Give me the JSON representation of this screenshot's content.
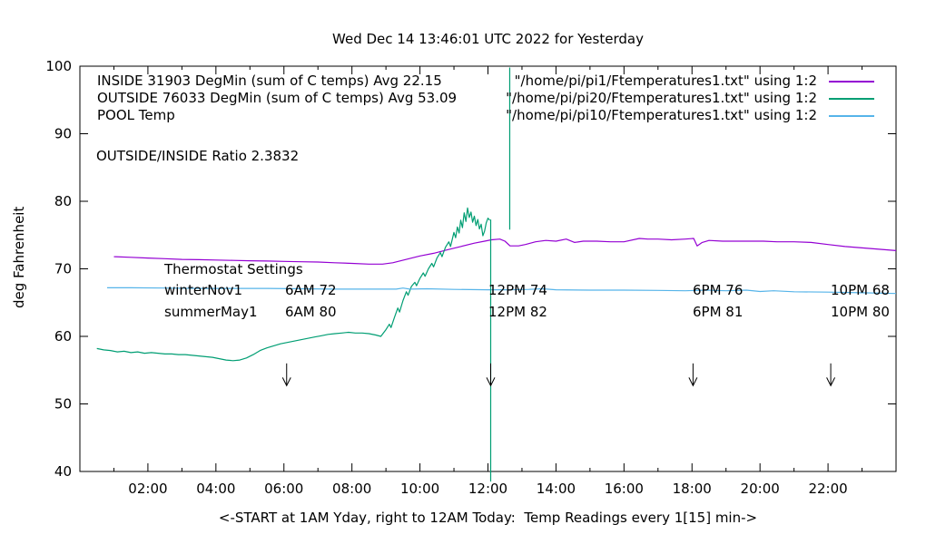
{
  "title": "Wed Dec 14 13:46:01 UTC 2022 for Yesterday",
  "ratio_label": "OUTSIDE/INSIDE Ratio 2.3832",
  "legend": {
    "entries": [
      {
        "label": "INSIDE 31903 DegMin (sum of C temps) Avg 22.15",
        "file": "\"/home/pi/pi1/Ftemperatures1.txt\" using 1:2",
        "color": "#9400d3"
      },
      {
        "label": "OUTSIDE 76033 DegMin (sum of C temps) Avg 53.09",
        "file": "\"/home/pi/pi20/Ftemperatures1.txt\" using 1:2",
        "color": "#009e73"
      },
      {
        "label": "POOL Temp",
        "file": "\"/home/pi/pi10/Ftemperatures1.txt\" using 1:2",
        "color": "#56b4e9"
      }
    ]
  },
  "thermostat": {
    "heading": "Thermostat Settings",
    "rows": [
      {
        "season": "winterNov1",
        "c1": "6AM 72",
        "c2": "12PM 74",
        "c3": "6PM 76",
        "c4": "10PM 68"
      },
      {
        "season": "summerMay1",
        "c1": "6AM 80",
        "c2": "12PM 82",
        "c3": "6PM 81",
        "c4": "10PM 80"
      }
    ]
  },
  "chart_data": {
    "type": "line",
    "title": "Wed Dec 14 13:46:01 UTC 2022 for Yesterday",
    "xlabel": "<-START at 1AM Yday, right to 12AM Today:  Temp Readings every 1[15] min->",
    "ylabel": "deg Fahrenheit",
    "xlim": [
      0,
      24
    ],
    "ylim": [
      40,
      100
    ],
    "grid": false,
    "legend_position": "top",
    "x_major_ticks": [
      {
        "v": 2,
        "label": "02:00"
      },
      {
        "v": 4,
        "label": "04:00"
      },
      {
        "v": 6,
        "label": "06:00"
      },
      {
        "v": 8,
        "label": "08:00"
      },
      {
        "v": 10,
        "label": "10:00"
      },
      {
        "v": 12,
        "label": "12:00"
      },
      {
        "v": 14,
        "label": "14:00"
      },
      {
        "v": 16,
        "label": "16:00"
      },
      {
        "v": 18,
        "label": "18:00"
      },
      {
        "v": 20,
        "label": "20:00"
      },
      {
        "v": 22,
        "label": "22:00"
      }
    ],
    "x_minor_ticks": [
      1,
      3,
      5,
      7,
      9,
      11,
      13,
      15,
      17,
      19,
      21,
      23
    ],
    "y_ticks": [
      {
        "v": 40,
        "label": "40"
      },
      {
        "v": 50,
        "label": "50"
      },
      {
        "v": 60,
        "label": "60"
      },
      {
        "v": 70,
        "label": "70"
      },
      {
        "v": 80,
        "label": "80"
      },
      {
        "v": 90,
        "label": "90"
      },
      {
        "v": 100,
        "label": "100"
      }
    ],
    "series": [
      {
        "name": "INSIDE temp (deg F)",
        "color": "#9400d3",
        "points": [
          [
            1,
            71.8
          ],
          [
            1.5,
            71.7
          ],
          [
            2,
            71.6
          ],
          [
            2.5,
            71.5
          ],
          [
            3,
            71.4
          ],
          [
            3.5,
            71.35
          ],
          [
            4,
            71.3
          ],
          [
            4.5,
            71.25
          ],
          [
            5,
            71.2
          ],
          [
            5.5,
            71.15
          ],
          [
            6,
            71.1
          ],
          [
            6.5,
            71.05
          ],
          [
            7,
            71.0
          ],
          [
            7.5,
            70.9
          ],
          [
            8,
            70.8
          ],
          [
            8.5,
            70.7
          ],
          [
            8.9,
            70.7
          ],
          [
            9.2,
            70.9
          ],
          [
            9.6,
            71.4
          ],
          [
            10,
            71.9
          ],
          [
            10.4,
            72.3
          ],
          [
            10.8,
            72.8
          ],
          [
            11.2,
            73.3
          ],
          [
            11.6,
            73.8
          ],
          [
            11.9,
            74.1
          ],
          [
            12.1,
            74.3
          ],
          [
            12.35,
            74.4
          ],
          [
            12.5,
            74.1
          ],
          [
            12.65,
            73.4
          ],
          [
            12.9,
            73.4
          ],
          [
            13.1,
            73.6
          ],
          [
            13.4,
            74.0
          ],
          [
            13.7,
            74.2
          ],
          [
            14,
            74.1
          ],
          [
            14.3,
            74.4
          ],
          [
            14.55,
            73.9
          ],
          [
            14.8,
            74.1
          ],
          [
            15.2,
            74.1
          ],
          [
            15.6,
            74.0
          ],
          [
            16,
            74.0
          ],
          [
            16.45,
            74.5
          ],
          [
            16.7,
            74.4
          ],
          [
            17,
            74.4
          ],
          [
            17.4,
            74.3
          ],
          [
            17.8,
            74.4
          ],
          [
            18.05,
            74.5
          ],
          [
            18.15,
            73.4
          ],
          [
            18.3,
            73.9
          ],
          [
            18.5,
            74.2
          ],
          [
            18.9,
            74.1
          ],
          [
            19.3,
            74.1
          ],
          [
            19.7,
            74.1
          ],
          [
            20.1,
            74.1
          ],
          [
            20.5,
            74.0
          ],
          [
            21,
            74.0
          ],
          [
            21.5,
            73.9
          ],
          [
            22,
            73.6
          ],
          [
            22.5,
            73.3
          ],
          [
            23,
            73.1
          ],
          [
            23.5,
            72.9
          ],
          [
            24,
            72.7
          ]
        ]
      },
      {
        "name": "OUTSIDE temp (deg F)",
        "color": "#009e73",
        "points": [
          [
            0.5,
            58.2
          ],
          [
            0.7,
            58.0
          ],
          [
            0.9,
            57.9
          ],
          [
            1.1,
            57.7
          ],
          [
            1.3,
            57.8
          ],
          [
            1.5,
            57.6
          ],
          [
            1.7,
            57.7
          ],
          [
            1.9,
            57.5
          ],
          [
            2.1,
            57.6
          ],
          [
            2.3,
            57.5
          ],
          [
            2.5,
            57.4
          ],
          [
            2.7,
            57.4
          ],
          [
            2.9,
            57.3
          ],
          [
            3.1,
            57.3
          ],
          [
            3.3,
            57.2
          ],
          [
            3.5,
            57.1
          ],
          [
            3.7,
            57.0
          ],
          [
            3.9,
            56.9
          ],
          [
            4.1,
            56.7
          ],
          [
            4.3,
            56.5
          ],
          [
            4.5,
            56.4
          ],
          [
            4.7,
            56.5
          ],
          [
            4.9,
            56.8
          ],
          [
            5.1,
            57.3
          ],
          [
            5.3,
            57.9
          ],
          [
            5.5,
            58.3
          ],
          [
            5.7,
            58.6
          ],
          [
            5.9,
            58.9
          ],
          [
            6.1,
            59.1
          ],
          [
            6.3,
            59.3
          ],
          [
            6.5,
            59.5
          ],
          [
            6.7,
            59.7
          ],
          [
            6.9,
            59.9
          ],
          [
            7.1,
            60.1
          ],
          [
            7.3,
            60.3
          ],
          [
            7.5,
            60.4
          ],
          [
            7.7,
            60.5
          ],
          [
            7.9,
            60.6
          ],
          [
            8.1,
            60.5
          ],
          [
            8.3,
            60.5
          ],
          [
            8.5,
            60.4
          ],
          [
            8.7,
            60.2
          ],
          [
            8.85,
            60.0
          ],
          [
            9.0,
            61.0
          ],
          [
            9.1,
            61.8
          ],
          [
            9.15,
            61.3
          ],
          [
            9.25,
            62.8
          ],
          [
            9.35,
            64.2
          ],
          [
            9.4,
            63.6
          ],
          [
            9.5,
            65.3
          ],
          [
            9.6,
            66.6
          ],
          [
            9.65,
            66.1
          ],
          [
            9.75,
            67.4
          ],
          [
            9.85,
            68.0
          ],
          [
            9.9,
            67.5
          ],
          [
            10.0,
            68.6
          ],
          [
            10.1,
            69.4
          ],
          [
            10.15,
            68.9
          ],
          [
            10.25,
            70.0
          ],
          [
            10.35,
            70.8
          ],
          [
            10.4,
            70.3
          ],
          [
            10.5,
            71.6
          ],
          [
            10.6,
            72.4
          ],
          [
            10.65,
            71.8
          ],
          [
            10.75,
            73.2
          ],
          [
            10.85,
            74.0
          ],
          [
            10.9,
            73.3
          ],
          [
            11.0,
            75.4
          ],
          [
            11.05,
            74.6
          ],
          [
            11.1,
            76.2
          ],
          [
            11.15,
            75.3
          ],
          [
            11.2,
            77.2
          ],
          [
            11.25,
            76.1
          ],
          [
            11.3,
            78.3
          ],
          [
            11.35,
            77.0
          ],
          [
            11.4,
            79.0
          ],
          [
            11.45,
            77.6
          ],
          [
            11.5,
            78.4
          ],
          [
            11.55,
            76.9
          ],
          [
            11.6,
            77.8
          ],
          [
            11.65,
            76.4
          ],
          [
            11.7,
            77.3
          ],
          [
            11.75,
            75.9
          ],
          [
            11.8,
            76.6
          ],
          [
            11.85,
            74.9
          ],
          [
            11.9,
            75.6
          ],
          [
            11.95,
            76.8
          ],
          [
            12.0,
            77.5
          ],
          [
            12.05,
            77.2
          ]
        ]
      },
      {
        "name": "POOL temp (deg F)",
        "color": "#56b4e9",
        "points": [
          [
            0.8,
            67.2
          ],
          [
            1.5,
            67.2
          ],
          [
            2.5,
            67.15
          ],
          [
            3.5,
            67.1
          ],
          [
            4.5,
            67.1
          ],
          [
            5.5,
            67.1
          ],
          [
            6.5,
            67.05
          ],
          [
            7.5,
            67.0
          ],
          [
            8.5,
            67.0
          ],
          [
            9.3,
            67.0
          ],
          [
            9.5,
            67.15
          ],
          [
            9.7,
            67.0
          ],
          [
            10.2,
            67.05
          ],
          [
            11,
            66.95
          ],
          [
            12,
            66.9
          ],
          [
            12.6,
            66.9
          ],
          [
            13.2,
            66.95
          ],
          [
            13.6,
            67.05
          ],
          [
            14,
            66.9
          ],
          [
            15,
            66.85
          ],
          [
            16,
            66.85
          ],
          [
            17,
            66.8
          ],
          [
            17.8,
            66.75
          ],
          [
            18.4,
            66.85
          ],
          [
            19,
            66.75
          ],
          [
            19.6,
            66.85
          ],
          [
            20,
            66.65
          ],
          [
            20.4,
            66.75
          ],
          [
            21,
            66.6
          ],
          [
            22,
            66.55
          ],
          [
            23,
            66.45
          ],
          [
            24,
            66.35
          ]
        ]
      }
    ],
    "glitch_lines": [
      {
        "x": 12.08,
        "y_from": 77.3,
        "y_to": 38.5,
        "color": "#009e73"
      },
      {
        "x": 12.64,
        "y_from": 99.8,
        "y_to": 75.8,
        "color": "#009e73"
      }
    ],
    "arrows": {
      "x_hours": [
        6.08,
        12.08,
        18.03,
        22.08
      ],
      "y_top_f": 56.0,
      "y_tip_f": 52.7,
      "color": "#000000"
    }
  }
}
